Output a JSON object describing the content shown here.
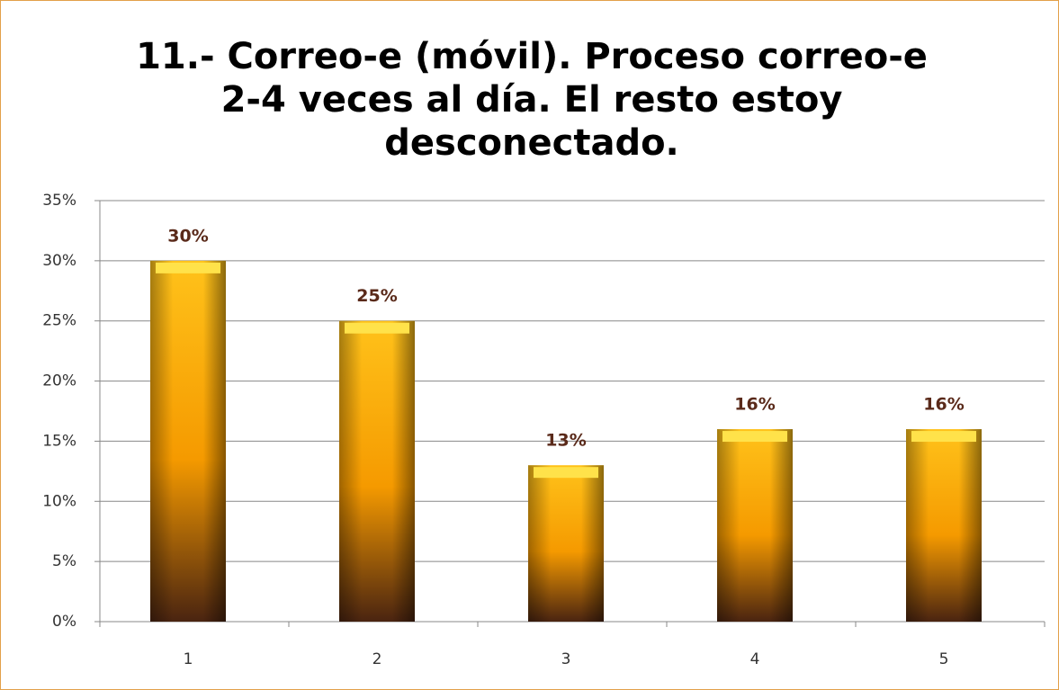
{
  "chart_data": {
    "type": "bar",
    "title": "11.- Correo-e (móvil). Proceso correo-e 2-4 veces al día. El resto estoy desconectado.",
    "categories": [
      "1",
      "2",
      "3",
      "4",
      "5"
    ],
    "values": [
      30,
      25,
      13,
      16,
      16
    ],
    "value_labels": [
      "30%",
      "25%",
      "13%",
      "16%",
      "16%"
    ],
    "color": "#f5a300",
    "ylim": [
      0,
      35
    ],
    "yticks": [
      {
        "value": 0,
        "label": "0%"
      },
      {
        "value": 5,
        "label": "5%"
      },
      {
        "value": 10,
        "label": "10%"
      },
      {
        "value": 15,
        "label": "15%"
      },
      {
        "value": 20,
        "label": "20%"
      },
      {
        "value": 25,
        "label": "25%"
      },
      {
        "value": 30,
        "label": "30%"
      },
      {
        "value": 35,
        "label": "35%"
      }
    ],
    "grid": true
  }
}
